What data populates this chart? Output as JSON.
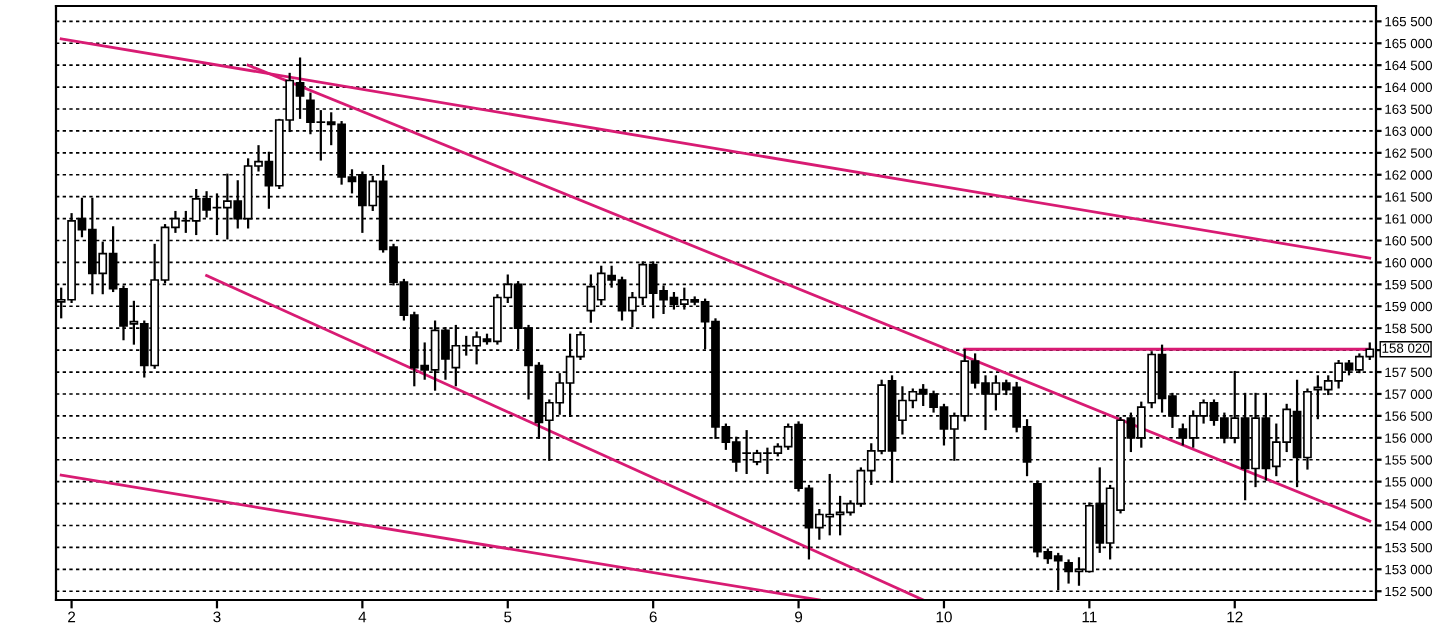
{
  "chart_data": {
    "type": "candlestick",
    "categories": [
      null,
      "2",
      null,
      null,
      null,
      null,
      null,
      null,
      null,
      null,
      null,
      null,
      null,
      null,
      null,
      "3",
      null,
      null,
      null,
      null,
      null,
      null,
      null,
      null,
      null,
      null,
      null,
      null,
      null,
      "4",
      null,
      null,
      null,
      null,
      null,
      null,
      null,
      null,
      null,
      null,
      null,
      null,
      null,
      "5",
      null,
      null,
      null,
      null,
      null,
      null,
      null,
      null,
      null,
      null,
      null,
      null,
      null,
      "6",
      null,
      null,
      null,
      null,
      null,
      null,
      null,
      null,
      null,
      null,
      null,
      null,
      null,
      "9",
      null,
      null,
      null,
      null,
      null,
      null,
      null,
      null,
      null,
      null,
      null,
      null,
      null,
      "10",
      null,
      null,
      null,
      null,
      null,
      null,
      null,
      null,
      null,
      null,
      null,
      null,
      null,
      "11",
      null,
      null,
      null,
      null,
      null,
      null,
      null,
      null,
      null,
      null,
      null,
      null,
      null,
      "12",
      null,
      null,
      null,
      null,
      null,
      null,
      null,
      null,
      null,
      null,
      null,
      null,
      null
    ],
    "ohlc": [
      [
        159100,
        159400,
        158750,
        159150
      ],
      [
        159150,
        161100,
        159100,
        160950
      ],
      [
        161000,
        161450,
        160600,
        160750
      ],
      [
        160750,
        161450,
        159300,
        159750
      ],
      [
        159750,
        160450,
        159300,
        160200
      ],
      [
        160200,
        160800,
        159350,
        159400
      ],
      [
        159400,
        159450,
        158250,
        158550
      ],
      [
        158600,
        159100,
        158150,
        158650
      ],
      [
        158600,
        158650,
        157400,
        157650
      ],
      [
        157650,
        160400,
        157600,
        159600
      ],
      [
        159600,
        160850,
        159550,
        160800
      ],
      [
        160800,
        161150,
        160700,
        161000
      ],
      [
        160950,
        161150,
        160700,
        160950
      ],
      [
        160950,
        161650,
        160650,
        161450
      ],
      [
        161450,
        161600,
        161050,
        161200
      ],
      [
        161250,
        161550,
        160650,
        161250
      ],
      [
        161250,
        162000,
        160550,
        161400
      ],
      [
        161400,
        161850,
        160800,
        161000
      ],
      [
        161000,
        162350,
        160800,
        162200
      ],
      [
        162200,
        162650,
        162100,
        162300
      ],
      [
        162300,
        162500,
        161250,
        161750
      ],
      [
        161750,
        163250,
        161700,
        163250
      ],
      [
        163250,
        164300,
        163000,
        164150
      ],
      [
        164100,
        164650,
        163300,
        163800
      ],
      [
        163700,
        163850,
        162950,
        163200
      ],
      [
        163200,
        163450,
        162350,
        163200
      ],
      [
        163200,
        163400,
        162700,
        163150
      ],
      [
        163150,
        163200,
        161800,
        161950
      ],
      [
        161950,
        162100,
        161600,
        161850
      ],
      [
        162000,
        162050,
        160700,
        161300
      ],
      [
        161300,
        161950,
        161200,
        161850
      ],
      [
        161850,
        162200,
        160250,
        160300
      ],
      [
        160350,
        160400,
        159500,
        159550
      ],
      [
        159550,
        159600,
        158700,
        158800
      ],
      [
        158800,
        158850,
        157200,
        157600
      ],
      [
        157650,
        158150,
        157350,
        157550
      ],
      [
        157550,
        158650,
        157100,
        158450
      ],
      [
        158450,
        158500,
        157350,
        157800
      ],
      [
        157600,
        158550,
        157200,
        158100
      ],
      [
        158100,
        158300,
        157900,
        158100
      ],
      [
        158100,
        158400,
        157700,
        158300
      ],
      [
        158250,
        158350,
        158150,
        158200
      ],
      [
        158200,
        159250,
        158150,
        159200
      ],
      [
        159200,
        159700,
        159100,
        159500
      ],
      [
        159500,
        159550,
        158050,
        158500
      ],
      [
        158500,
        158550,
        156900,
        157650
      ],
      [
        157650,
        157700,
        156000,
        156350
      ],
      [
        156400,
        156850,
        155500,
        156800
      ],
      [
        156800,
        157450,
        156550,
        157250
      ],
      [
        157250,
        158350,
        156500,
        157850
      ],
      [
        157850,
        158400,
        157800,
        158350
      ],
      [
        158900,
        159700,
        158650,
        159450
      ],
      [
        159150,
        159900,
        159050,
        159750
      ],
      [
        159700,
        159900,
        159450,
        159600
      ],
      [
        159600,
        159650,
        158700,
        158900
      ],
      [
        158900,
        159300,
        158550,
        159200
      ],
      [
        159200,
        160000,
        159050,
        159950
      ],
      [
        159950,
        160000,
        158750,
        159300
      ],
      [
        159350,
        159450,
        158850,
        159150
      ],
      [
        159200,
        159300,
        158950,
        159050
      ],
      [
        159050,
        159400,
        158950,
        159150
      ],
      [
        159150,
        159200,
        159050,
        159100
      ],
      [
        159100,
        159150,
        158050,
        158650
      ],
      [
        158650,
        158700,
        156000,
        156250
      ],
      [
        156250,
        156300,
        155750,
        155900
      ],
      [
        155900,
        156000,
        155250,
        155450
      ],
      [
        155650,
        156150,
        155200,
        155650
      ],
      [
        155450,
        155700,
        155400,
        155650
      ],
      [
        155650,
        155750,
        155200,
        155650
      ],
      [
        155650,
        155850,
        155600,
        155800
      ],
      [
        155800,
        156300,
        155750,
        156250
      ],
      [
        156300,
        156350,
        154800,
        154850
      ],
      [
        154850,
        154900,
        153250,
        153950
      ],
      [
        153950,
        154350,
        153700,
        154250
      ],
      [
        154200,
        155150,
        153800,
        154250
      ],
      [
        154250,
        154650,
        153800,
        154300
      ],
      [
        154300,
        154550,
        154250,
        154500
      ],
      [
        154500,
        155300,
        154450,
        155250
      ],
      [
        155250,
        155850,
        154950,
        155700
      ],
      [
        155700,
        157300,
        155650,
        157200
      ],
      [
        157300,
        157400,
        155000,
        155700
      ],
      [
        156400,
        157150,
        156100,
        156850
      ],
      [
        156850,
        157100,
        156700,
        157050
      ],
      [
        157100,
        157200,
        156750,
        157000
      ],
      [
        157000,
        157050,
        156600,
        156700
      ],
      [
        156700,
        156750,
        155850,
        156200
      ],
      [
        156200,
        156550,
        155500,
        156500
      ],
      [
        156500,
        158000,
        156400,
        157750
      ],
      [
        157750,
        157900,
        157150,
        157250
      ],
      [
        157250,
        157400,
        156200,
        157000
      ],
      [
        157000,
        157400,
        156650,
        157250
      ],
      [
        157250,
        157300,
        157000,
        157100
      ],
      [
        157150,
        157250,
        156150,
        156250
      ],
      [
        156250,
        156400,
        155150,
        155450
      ],
      [
        154950,
        155000,
        153300,
        153400
      ],
      [
        153400,
        153450,
        153150,
        153250
      ],
      [
        153300,
        153350,
        152550,
        153200
      ],
      [
        153150,
        153200,
        152700,
        152950
      ],
      [
        152950,
        153250,
        152650,
        153000
      ],
      [
        152950,
        154500,
        152950,
        154450
      ],
      [
        154500,
        155300,
        153400,
        153600
      ],
      [
        153600,
        154900,
        153250,
        154850
      ],
      [
        154350,
        156450,
        154300,
        156400
      ],
      [
        156450,
        156550,
        155700,
        156000
      ],
      [
        156000,
        156800,
        155800,
        156700
      ],
      [
        156800,
        157950,
        156700,
        157900
      ],
      [
        157900,
        158100,
        156600,
        156900
      ],
      [
        156950,
        157000,
        156250,
        156500
      ],
      [
        156200,
        156300,
        155850,
        156000
      ],
      [
        156000,
        156600,
        155800,
        156500
      ],
      [
        156500,
        156850,
        156350,
        156800
      ],
      [
        156800,
        156850,
        156300,
        156400
      ],
      [
        156450,
        156550,
        155900,
        156000
      ],
      [
        156000,
        157500,
        155900,
        156450
      ],
      [
        156450,
        157000,
        154600,
        155300
      ],
      [
        155300,
        157000,
        154900,
        156450
      ],
      [
        156450,
        157000,
        155050,
        155300
      ],
      [
        155350,
        156300,
        155150,
        155900
      ],
      [
        155900,
        156750,
        155700,
        156650
      ],
      [
        156600,
        157300,
        154900,
        155550
      ],
      [
        155550,
        157100,
        155300,
        157050
      ],
      [
        157100,
        157400,
        156450,
        157150
      ],
      [
        157100,
        157400,
        157000,
        157300
      ],
      [
        157300,
        157750,
        157150,
        157700
      ],
      [
        157700,
        157750,
        157450,
        157550
      ],
      [
        157550,
        157900,
        157500,
        157850
      ],
      [
        157850,
        158150,
        157800,
        158020
      ]
    ],
    "series": [
      {
        "type": "line",
        "color": "#d81b73",
        "values": [
          165100,
          null,
          null,
          null,
          null,
          null,
          null,
          null,
          null,
          null,
          null,
          null,
          null,
          null,
          null,
          null,
          null,
          null,
          null,
          null,
          null,
          null,
          null,
          null,
          null,
          null,
          null,
          null,
          null,
          null,
          null,
          null,
          null,
          null,
          null,
          null,
          null,
          null,
          null,
          null,
          null,
          null,
          null,
          null,
          null,
          null,
          null,
          null,
          null,
          null,
          null,
          null,
          null,
          null,
          null,
          null,
          null,
          null,
          null,
          null,
          null,
          null,
          null,
          null,
          null,
          null,
          null,
          null,
          null,
          null,
          null,
          null,
          null,
          null,
          null,
          null,
          null,
          null,
          null,
          null,
          null,
          null,
          null,
          null,
          null,
          null,
          null,
          null,
          null,
          null,
          null,
          null,
          null,
          null,
          null,
          null,
          null,
          null,
          null,
          null,
          null,
          null,
          null,
          null,
          null,
          null,
          null,
          null,
          null,
          null,
          null,
          null,
          null,
          null,
          null,
          null,
          null,
          null,
          null,
          null,
          null,
          null,
          null,
          null,
          null,
          null,
          160100
        ]
      },
      {
        "type": "line",
        "color": "#d81b73",
        "values": [
          null,
          null,
          null,
          null,
          null,
          null,
          null,
          null,
          null,
          null,
          null,
          null,
          null,
          null,
          null,
          null,
          null,
          null,
          164500,
          null,
          null,
          null,
          null,
          null,
          null,
          null,
          null,
          null,
          null,
          null,
          null,
          null,
          null,
          null,
          null,
          null,
          null,
          null,
          null,
          null,
          null,
          null,
          null,
          null,
          null,
          null,
          null,
          null,
          null,
          null,
          null,
          null,
          null,
          null,
          null,
          null,
          null,
          null,
          null,
          null,
          null,
          null,
          null,
          null,
          null,
          null,
          null,
          null,
          null,
          null,
          null,
          null,
          null,
          null,
          null,
          null,
          null,
          null,
          null,
          null,
          null,
          null,
          null,
          null,
          null,
          null,
          null,
          null,
          null,
          null,
          null,
          null,
          null,
          null,
          null,
          null,
          null,
          null,
          null,
          null,
          null,
          null,
          null,
          null,
          null,
          null,
          null,
          null,
          null,
          null,
          null,
          null,
          null,
          null,
          null,
          null,
          null,
          null,
          null,
          null,
          null,
          null,
          null,
          null,
          null,
          null,
          154100
        ]
      },
      {
        "type": "line",
        "color": "#d81b73",
        "values": [
          null,
          null,
          null,
          null,
          null,
          null,
          null,
          null,
          null,
          null,
          null,
          null,
          null,
          null,
          159700,
          null,
          null,
          null,
          null,
          null,
          null,
          null,
          null,
          null,
          null,
          null,
          null,
          null,
          null,
          null,
          null,
          null,
          null,
          null,
          null,
          null,
          null,
          null,
          null,
          null,
          null,
          null,
          null,
          null,
          null,
          null,
          null,
          null,
          null,
          null,
          null,
          null,
          null,
          null,
          null,
          null,
          null,
          null,
          null,
          null,
          null,
          null,
          null,
          null,
          null,
          null,
          null,
          null,
          null,
          null,
          null,
          null,
          null,
          null,
          null,
          null,
          null,
          null,
          null,
          null,
          null,
          null,
          null,
          152300,
          null,
          null,
          null,
          null,
          null,
          null,
          null,
          null,
          null,
          null,
          null,
          null,
          null,
          null,
          null,
          null,
          null,
          null,
          null,
          null,
          null,
          null,
          null,
          null,
          null,
          null,
          null,
          null,
          null,
          null,
          null,
          null,
          null,
          null,
          null,
          null,
          null,
          null,
          null,
          null,
          null,
          null,
          null
        ]
      },
      {
        "type": "line",
        "color": "#d81b73",
        "values": [
          155150,
          null,
          null,
          null,
          null,
          null,
          null,
          null,
          null,
          null,
          null,
          null,
          null,
          null,
          null,
          null,
          null,
          null,
          null,
          null,
          null,
          null,
          null,
          null,
          null,
          null,
          null,
          null,
          null,
          null,
          null,
          null,
          null,
          null,
          null,
          null,
          null,
          null,
          null,
          null,
          null,
          null,
          null,
          null,
          null,
          null,
          null,
          null,
          null,
          null,
          null,
          null,
          null,
          null,
          null,
          null,
          null,
          null,
          null,
          null,
          null,
          null,
          null,
          null,
          null,
          null,
          null,
          null,
          null,
          null,
          null,
          null,
          null,
          152300,
          null,
          null,
          null,
          null,
          null,
          null,
          null,
          null,
          null,
          null,
          null,
          null,
          null,
          null,
          null,
          null,
          null,
          null,
          null,
          null,
          null,
          null,
          null,
          null,
          null,
          null,
          null,
          null,
          null,
          null,
          null,
          null,
          null,
          null,
          null,
          null,
          null,
          null,
          null,
          null,
          null,
          null,
          null,
          null,
          null,
          null,
          null,
          null,
          null,
          null,
          null,
          null,
          null
        ]
      },
      {
        "type": "line",
        "color": "#d81b73",
        "values": [
          null,
          null,
          null,
          null,
          null,
          null,
          null,
          null,
          null,
          null,
          null,
          null,
          null,
          null,
          null,
          null,
          null,
          null,
          null,
          null,
          null,
          null,
          null,
          null,
          null,
          null,
          null,
          null,
          null,
          null,
          null,
          null,
          null,
          null,
          null,
          null,
          null,
          null,
          null,
          null,
          null,
          null,
          null,
          null,
          null,
          null,
          null,
          null,
          null,
          null,
          null,
          null,
          null,
          null,
          null,
          null,
          null,
          null,
          null,
          null,
          null,
          null,
          null,
          null,
          null,
          null,
          null,
          null,
          null,
          null,
          null,
          null,
          null,
          null,
          null,
          null,
          null,
          null,
          null,
          null,
          null,
          null,
          null,
          null,
          null,
          null,
          null,
          158020,
          null,
          null,
          null,
          null,
          null,
          null,
          null,
          null,
          null,
          null,
          null,
          null,
          null,
          null,
          null,
          null,
          null,
          null,
          null,
          null,
          null,
          null,
          null,
          null,
          null,
          null,
          null,
          null,
          null,
          null,
          null,
          null,
          null,
          null,
          null,
          null,
          null,
          null,
          158020
        ]
      }
    ],
    "ylim": [
      152300,
      165850
    ],
    "yticks": [
      {
        "value": 152500,
        "label": "152 500"
      },
      {
        "value": 153000,
        "label": "153 000"
      },
      {
        "value": 153500,
        "label": "153 500"
      },
      {
        "value": 154000,
        "label": "154 000"
      },
      {
        "value": 154500,
        "label": "154 500"
      },
      {
        "value": 155000,
        "label": "155 000"
      },
      {
        "value": 155500,
        "label": "155 500"
      },
      {
        "value": 156000,
        "label": "156 000"
      },
      {
        "value": 156500,
        "label": "156 500"
      },
      {
        "value": 157000,
        "label": "157 000"
      },
      {
        "value": 157500,
        "label": "157 500"
      },
      {
        "value": 158000,
        "label": null
      },
      {
        "value": 158500,
        "label": "158 500"
      },
      {
        "value": 159000,
        "label": "159 000"
      },
      {
        "value": 159500,
        "label": "159 500"
      },
      {
        "value": 160000,
        "label": "160 000"
      },
      {
        "value": 160500,
        "label": "160 500"
      },
      {
        "value": 161000,
        "label": "161 000"
      },
      {
        "value": 161500,
        "label": "161 500"
      },
      {
        "value": 162000,
        "label": "162 000"
      },
      {
        "value": 162500,
        "label": "162 500"
      },
      {
        "value": 163000,
        "label": "163 000"
      },
      {
        "value": 163500,
        "label": "163 500"
      },
      {
        "value": 164000,
        "label": "164 000"
      },
      {
        "value": 164500,
        "label": "164 500"
      },
      {
        "value": 165000,
        "label": "165 000"
      },
      {
        "value": 165500,
        "label": "165 500"
      }
    ],
    "annotations": [
      "158 020"
    ],
    "grid": "y"
  }
}
